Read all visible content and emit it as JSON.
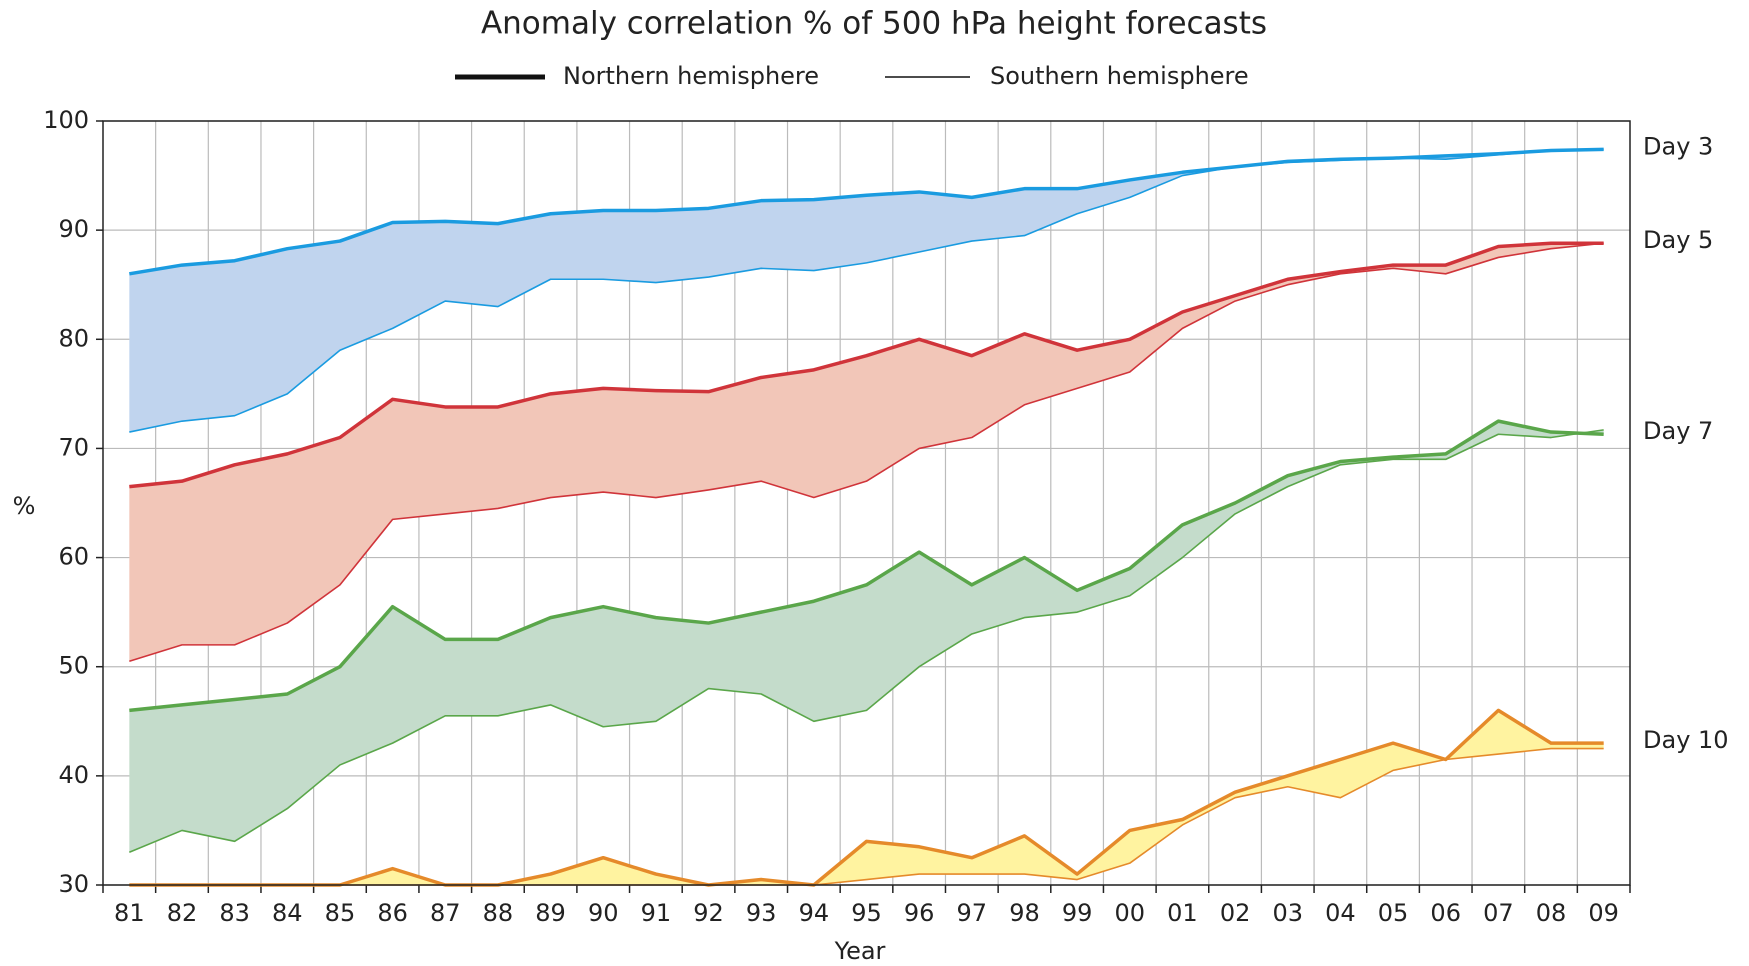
{
  "chart_data": {
    "type": "line",
    "title": "Anomaly correlation % of 500 hPa height forecasts",
    "xlabel": "Year",
    "ylabel": "%",
    "categories": [
      "81",
      "82",
      "83",
      "84",
      "85",
      "86",
      "87",
      "88",
      "89",
      "90",
      "91",
      "92",
      "93",
      "94",
      "95",
      "96",
      "97",
      "98",
      "99",
      "00",
      "01",
      "02",
      "03",
      "04",
      "05",
      "06",
      "07",
      "08",
      "09"
    ],
    "legend": [
      {
        "name": "Northern hemisphere"
      },
      {
        "name": "Southern hemisphere"
      }
    ],
    "groups": [
      {
        "label": "Day 3",
        "color": "#1a9be0",
        "fill": "#c0d4ee",
        "northern": [
          86,
          86.8,
          87.2,
          88.3,
          89,
          90.7,
          90.8,
          90.6,
          91.5,
          91.8,
          91.8,
          92,
          92.7,
          92.8,
          93.2,
          93.5,
          93,
          93.8,
          93.8,
          94.6,
          95.3,
          95.8,
          96.3,
          96.5,
          96.6,
          96.8,
          97,
          97.3,
          97.4
        ],
        "southern": [
          71.5,
          72.5,
          73,
          75,
          79,
          81,
          83.5,
          83,
          85.5,
          85.5,
          85.2,
          85.7,
          86.5,
          86.3,
          87,
          88,
          89,
          89.5,
          91.5,
          93,
          95,
          95.8,
          96.2,
          96.4,
          96.6,
          96.5,
          96.9,
          97.3,
          97.4
        ]
      },
      {
        "label": "Day 5",
        "color": "#d0343a",
        "fill": "#f2c6b8",
        "northern": [
          66.5,
          67,
          68.5,
          69.5,
          71,
          74.5,
          73.8,
          73.8,
          75,
          75.5,
          75.3,
          75.2,
          76.5,
          77.2,
          78.5,
          80,
          78.5,
          80.5,
          79,
          80,
          82.5,
          84,
          85.5,
          86.2,
          86.8,
          86.8,
          88.5,
          88.8,
          88.8
        ],
        "southern": [
          50.5,
          52,
          52,
          54,
          57.5,
          63.5,
          64,
          64.5,
          65.5,
          66,
          65.5,
          66.2,
          67,
          65.5,
          67,
          70,
          71,
          74,
          75.5,
          77,
          81,
          83.5,
          85,
          86,
          86.5,
          86,
          87.5,
          88.3,
          88.8
        ]
      },
      {
        "label": "Day 7",
        "color": "#5aa64a",
        "fill": "#c4dccb",
        "northern": [
          46,
          46.5,
          47,
          47.5,
          50,
          55.5,
          52.5,
          52.5,
          54.5,
          55.5,
          54.5,
          54,
          55,
          56,
          57.5,
          60.5,
          57.5,
          60,
          57,
          59,
          63,
          65,
          67.5,
          68.8,
          69.2,
          69.5,
          72.5,
          71.5,
          71.3
        ],
        "southern": [
          33,
          35,
          34,
          37,
          41,
          43,
          45.5,
          45.5,
          46.5,
          44.5,
          45,
          48,
          47.5,
          45,
          46,
          50,
          53,
          54.5,
          55,
          56.5,
          60,
          64,
          66.5,
          68.5,
          69,
          69,
          71.3,
          71,
          71.7
        ]
      },
      {
        "label": "Day 10",
        "color": "#e58a2a",
        "fill": "#fff3a0",
        "northern": [
          30,
          30,
          30,
          30,
          30,
          31.5,
          30,
          30,
          31,
          32.5,
          31,
          30,
          30.5,
          30,
          34,
          33.5,
          32.5,
          34.5,
          31,
          35,
          36,
          38.5,
          40,
          41.5,
          43,
          41.5,
          46,
          43,
          43
        ],
        "southern": [
          30,
          30,
          30,
          30,
          30,
          30,
          30,
          30,
          30,
          30,
          30,
          30,
          30,
          30,
          30.5,
          31,
          31,
          31,
          30.5,
          32,
          35.5,
          38,
          39,
          38,
          40.5,
          41.5,
          42,
          42.5,
          42.5
        ]
      }
    ],
    "ylim": [
      30,
      100
    ],
    "yticks": [
      30,
      40,
      50,
      60,
      70,
      80,
      90,
      100
    ],
    "grid": true
  }
}
